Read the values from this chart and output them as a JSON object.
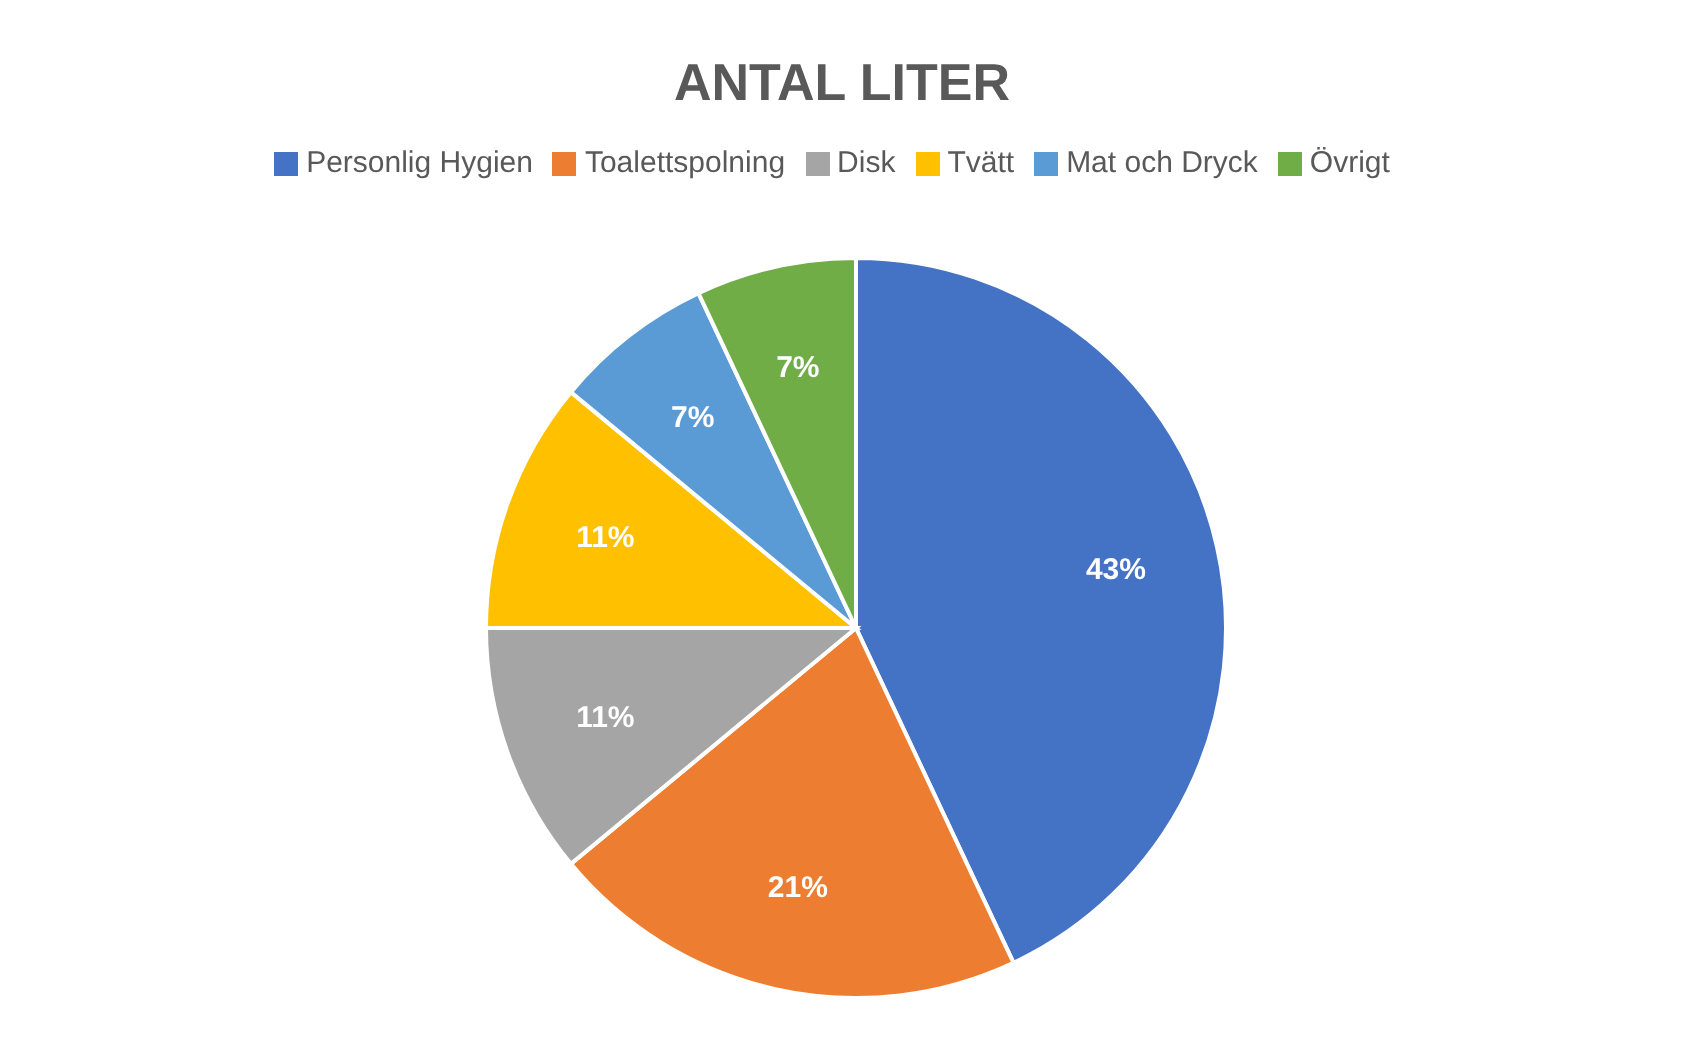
{
  "chart_data": {
    "type": "pie",
    "title": "ANTAL LITER",
    "categories": [
      "Personlig Hygien",
      "Toalettspolning",
      "Disk",
      "Tvätt",
      "Mat och Dryck",
      "Övrigt"
    ],
    "values": [
      43,
      21,
      11,
      11,
      7,
      7
    ],
    "colors": [
      "#4472c4",
      "#ed7d31",
      "#a5a5a5",
      "#ffc000",
      "#5b9bd5",
      "#70ad47"
    ],
    "value_labels": [
      "43%",
      "21%",
      "11%",
      "11%",
      "7%",
      "7%"
    ],
    "legend": "top"
  }
}
